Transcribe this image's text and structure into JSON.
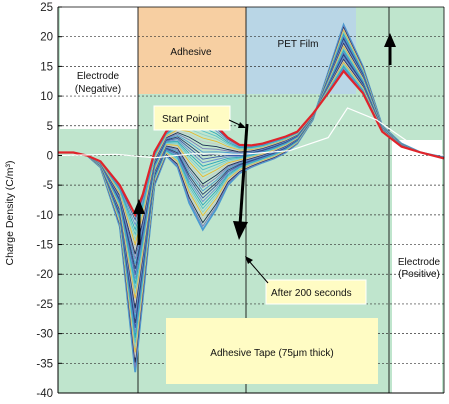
{
  "chart_data": {
    "type": "line",
    "title": "",
    "ylabel": "Charge Density (C/m³)",
    "xlabel": "",
    "ylim": [
      -40,
      25
    ],
    "yticks": [
      25,
      20,
      15,
      10,
      5,
      0,
      -5,
      -10,
      -15,
      -20,
      -25,
      -30,
      -35,
      -40
    ],
    "grid": "horizontal-dotted",
    "regions": [
      {
        "label": "Electrode (Negative)",
        "color": "#ffffff"
      },
      {
        "label": "Adhesive",
        "color": "#f7cfa2"
      },
      {
        "label": "PET Film",
        "color": "#b9d6e6"
      },
      {
        "label": "Electrode (Positive)",
        "color": "#ffffff"
      }
    ],
    "background_color": "#bfe5cd",
    "annotations": {
      "start": "Start Point",
      "end": "After 200 seconds",
      "sample": "Adhesive Tape (75μm thick)"
    },
    "series_colors": [
      "#e0242b",
      "#2b3f6e",
      "#3b5aa8",
      "#6a8fd0",
      "#2aa7b8",
      "#55c0c8",
      "#8fd0c8",
      "#e8b830",
      "#c8c8c8",
      "#1a2b50",
      "#7a7ab8",
      "#4a9ad0"
    ],
    "series": [
      {
        "x": [
          0,
          8,
          15,
          22,
          32,
          40,
          44,
          50,
          56,
          62,
          68,
          75,
          82,
          88,
          94,
          100,
          106,
          112,
          118,
          124,
          132,
          140,
          148,
          158,
          168,
          178,
          188,
          200
        ],
        "values": [
          0.5,
          0.5,
          0,
          -1,
          -5,
          -10,
          -6.5,
          0.6,
          4,
          5.8,
          6.8,
          6.5,
          5,
          3,
          1.8,
          1.7,
          2,
          2.6,
          3.2,
          4,
          7,
          10.5,
          14.2,
          10.5,
          4,
          1.5,
          0.5,
          -0.5
        ]
      },
      {
        "x": [
          0,
          8,
          15,
          22,
          32,
          40,
          44,
          50,
          56,
          62,
          68,
          75,
          82,
          88,
          94,
          100,
          106,
          112,
          118,
          124,
          132,
          140,
          148,
          158,
          168,
          178,
          188,
          200
        ],
        "values": [
          0.5,
          0.5,
          0,
          -2,
          -12,
          -36.5,
          -24,
          -5,
          0,
          -2,
          -8,
          -12.5,
          -9,
          -5,
          -3,
          -2,
          -1.2,
          -0.5,
          0.5,
          2,
          6,
          14,
          22,
          15,
          5,
          2,
          0.5,
          -0.3
        ]
      }
    ]
  }
}
